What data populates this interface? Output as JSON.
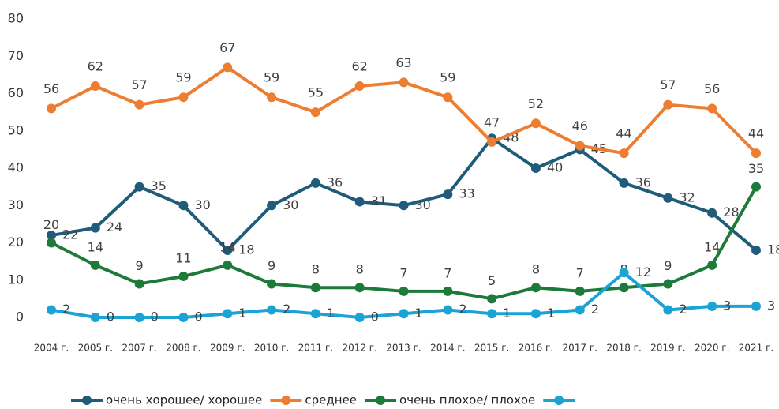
{
  "chart_data": {
    "type": "line",
    "categories": [
      "2004 г.",
      "2005 г.",
      "2007 г.",
      "2008 г.",
      "2009 г.",
      "2010 г.",
      "2011 г.",
      "2012 г.",
      "2013 г.",
      "2014 г.",
      "2015 г.",
      "2016 г.",
      "2017 г.",
      "2018 г.",
      "2019 г.",
      "2020 г.",
      "2021 г."
    ],
    "series": [
      {
        "name": "очень хорошее/ хорошее",
        "color": "#1f5c7a",
        "values": [
          22,
          24,
          35,
          30,
          18,
          30,
          36,
          31,
          30,
          33,
          48,
          40,
          45,
          36,
          32,
          28,
          18
        ]
      },
      {
        "name": "среднее",
        "color": "#ed7d31",
        "values": [
          56,
          62,
          57,
          59,
          67,
          59,
          55,
          62,
          63,
          59,
          47,
          52,
          46,
          44,
          57,
          56,
          44
        ]
      },
      {
        "name": "очень плохое/ плохое",
        "color": "#1e7a3a",
        "values": [
          20,
          14,
          9,
          11,
          14,
          9,
          8,
          8,
          7,
          7,
          5,
          8,
          7,
          8,
          9,
          14,
          35
        ]
      },
      {
        "color": "#1ba3d6",
        "values": [
          2,
          0,
          0,
          0,
          1,
          2,
          1,
          0,
          1,
          2,
          1,
          1,
          2,
          12,
          2,
          3,
          3
        ]
      }
    ],
    "ylim": [
      0,
      80
    ],
    "yticks": [
      0,
      10,
      20,
      30,
      40,
      50,
      60,
      70,
      80
    ],
    "grid": false,
    "legend": "bottom"
  }
}
